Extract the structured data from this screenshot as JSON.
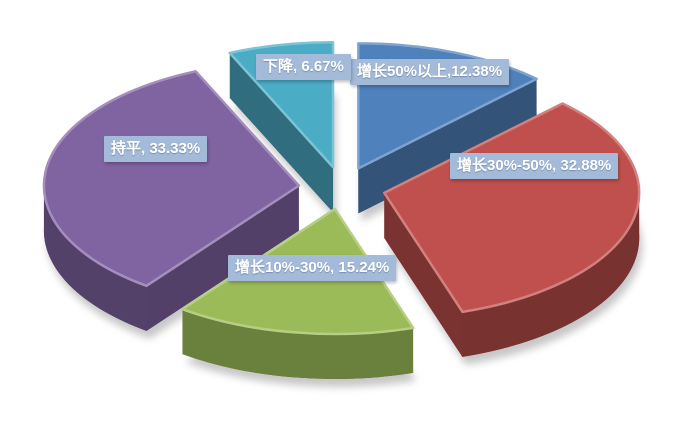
{
  "chart_data": {
    "type": "pie",
    "style": "3d-exploded",
    "title": "",
    "legend": "none",
    "background": "#FFFFFF",
    "label_bg_color": "#A3BAD9",
    "label_text_color": "#FFFFFF",
    "start_angle_deg": 0,
    "direction": "clockwise",
    "categories": [
      "增长50%以上",
      "增长30%-50%",
      "增长10%-30%",
      "持平",
      "下降"
    ],
    "values": [
      12.38,
      32.88,
      15.24,
      33.33,
      6.67
    ],
    "slices": [
      {
        "name": "增长50%以上",
        "value": 12.38,
        "label": "增长50%以上,12.38%",
        "color": "#4F81BD"
      },
      {
        "name": "增长30%-50%",
        "value": 32.88,
        "label": "增长30%-50%, 32.88%",
        "color": "#C0504D"
      },
      {
        "name": "增长10%-30%",
        "value": 15.24,
        "label": "增长10%-30%, 15.24%",
        "color": "#9BBB59"
      },
      {
        "name": "持平",
        "value": 33.33,
        "label": "持平, 33.33%",
        "color": "#8064A2"
      },
      {
        "name": "下降",
        "value": 6.67,
        "label": "下降, 6.67%",
        "color": "#4BACC6"
      }
    ]
  }
}
